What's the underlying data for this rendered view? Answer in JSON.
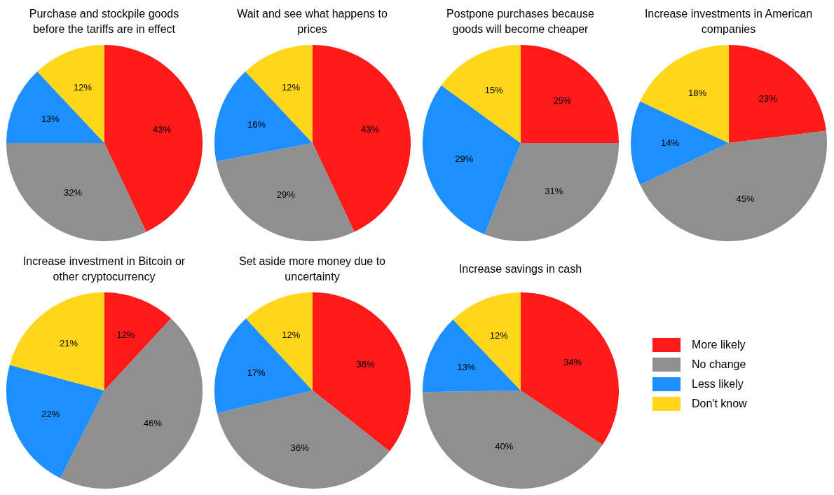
{
  "chart_data": [
    {
      "type": "pie",
      "title": "Purchase and stockpile goods before the tariffs are in effect",
      "categories": [
        null,
        null,
        null,
        null
      ],
      "values": [
        43,
        32,
        13,
        12
      ],
      "colors": [
        "#ff1a1a",
        "#8f8f8f",
        "#1e8fff",
        "#ffd61a"
      ],
      "value_labels": [
        "43%",
        "32%",
        "13%",
        "12%"
      ]
    },
    {
      "type": "pie",
      "title": "Wait and see what happens to prices",
      "categories": [
        null,
        null,
        null,
        null
      ],
      "values": [
        43,
        29,
        16,
        12
      ],
      "colors": [
        "#ff1a1a",
        "#8f8f8f",
        "#1e8fff",
        "#ffd61a"
      ],
      "value_labels": [
        "43%",
        "29%",
        "16%",
        "12%"
      ]
    },
    {
      "type": "pie",
      "title": "Postpone purchases because goods will become cheaper",
      "categories": [
        null,
        null,
        null,
        null
      ],
      "values": [
        25,
        31,
        29,
        15
      ],
      "colors": [
        "#ff1a1a",
        "#8f8f8f",
        "#1e8fff",
        "#ffd61a"
      ],
      "value_labels": [
        "25%",
        "31%",
        "29%",
        "15%"
      ]
    },
    {
      "type": "pie",
      "title": "Increase investments in American companies",
      "categories": [
        null,
        null,
        null,
        null
      ],
      "values": [
        23,
        45,
        14,
        18
      ],
      "colors": [
        "#ff1a1a",
        "#8f8f8f",
        "#1e8fff",
        "#ffd61a"
      ],
      "value_labels": [
        "23%",
        "45%",
        "14%",
        "18%"
      ]
    },
    {
      "type": "pie",
      "title": "Increase investment in Bitcoin or other cryptocurrency",
      "categories": [
        null,
        null,
        null,
        null
      ],
      "values": [
        12,
        46,
        22,
        21
      ],
      "colors": [
        "#ff1a1a",
        "#8f8f8f",
        "#1e8fff",
        "#ffd61a"
      ],
      "value_labels": [
        "12%",
        "46%",
        "22%",
        "21%"
      ]
    },
    {
      "type": "pie",
      "title": "Set aside more money due to uncertainty",
      "categories": [
        null,
        null,
        null,
        null
      ],
      "values": [
        36,
        36,
        17,
        12
      ],
      "colors": [
        "#ff1a1a",
        "#8f8f8f",
        "#1e8fff",
        "#ffd61a"
      ],
      "value_labels": [
        "36%",
        "36%",
        "17%",
        "12%"
      ]
    },
    {
      "type": "pie",
      "title": "Increase savings in cash",
      "categories": [
        "More likely",
        "No change",
        "Less likely",
        "Don't know"
      ],
      "values": [
        34,
        40,
        13,
        12
      ],
      "colors": [
        "#ff1a1a",
        "#8f8f8f",
        "#1e8fff",
        "#ffd61a"
      ],
      "value_labels": [
        "34%",
        "40%",
        "13%",
        "12%"
      ],
      "legend": "right"
    }
  ]
}
